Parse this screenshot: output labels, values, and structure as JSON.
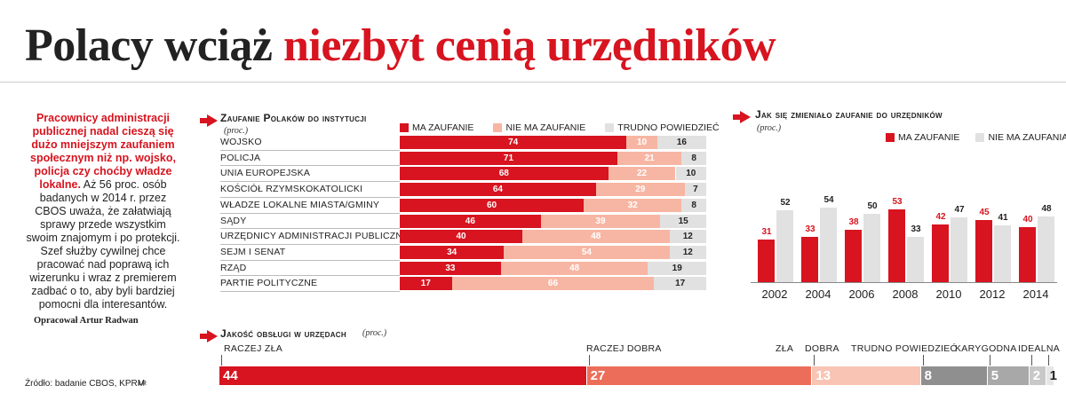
{
  "header": {
    "title_black": "Polacy wciąż",
    "title_red": "niezbyt cenią urzędników"
  },
  "lead": {
    "bold_text": "Pracownicy administracji publicznej nadal cieszą się dużo mniejszym zaufaniem społecznym niż np. wojsko, policja czy choćby władze lokalne.",
    "body_text": " Aż 56 proc. osób badanych w 2014 r. przez CBOS uważa, że załatwiają sprawy przede wszystkim swoim znajomym i po protekcji. Szef służby cywilnej chce pracować nad poprawą ich wizerunku i wraz z premierem zadbać o to, aby byli bardziej pomocni dla interesantów.",
    "author": "Opracował Artur Radwan"
  },
  "footer": {
    "source": "Źródło: badanie CBOS, KPRM",
    "tag": "LR"
  },
  "colors": {
    "red": "#d7141f",
    "pink": "#f7b6a3",
    "grey": "#e1e1e1",
    "dark_grey": "#9a9a9a"
  },
  "chart_data": [
    {
      "type": "bar",
      "orientation": "horizontal-stacked",
      "title": "Zaufanie Polaków do instytucji",
      "subtitle": "(proc.)",
      "categories": [
        "WOJSKO",
        "POLICJA",
        "UNIA EUROPEJSKA",
        "KOŚCIÓŁ RZYMSKOKATOLICKI",
        "WŁADZE LOKALNE MIASTA/GMINY",
        "SĄDY",
        "URZĘDNICY ADMINISTRACJI PUBLICZNEJ",
        "SEJM I SENAT",
        "RZĄD",
        "PARTIE POLITYCZNE"
      ],
      "series": [
        {
          "name": "MA ZAUFANIE",
          "values": [
            74,
            71,
            68,
            64,
            60,
            46,
            40,
            34,
            33,
            17
          ]
        },
        {
          "name": "NIE MA ZAUFANIE",
          "values": [
            10,
            21,
            22,
            29,
            32,
            39,
            48,
            54,
            48,
            66
          ]
        },
        {
          "name": "TRUDNO POWIEDZIEĆ",
          "values": [
            16,
            8,
            10,
            7,
            8,
            15,
            12,
            12,
            19,
            17
          ]
        }
      ],
      "legend_position": "top"
    },
    {
      "type": "bar",
      "title": "Jak się zmieniało zaufanie do urzędników",
      "subtitle": "(proc.)",
      "categories": [
        "2002",
        "2004",
        "2006",
        "2008",
        "2010",
        "2012",
        "2014"
      ],
      "series": [
        {
          "name": "MA ZAUFANIE",
          "values": [
            31,
            33,
            38,
            53,
            42,
            45,
            40
          ]
        },
        {
          "name": "NIE MA ZAUFANIA",
          "values": [
            52,
            54,
            50,
            33,
            47,
            41,
            48
          ]
        }
      ],
      "legend_position": "top"
    },
    {
      "type": "bar",
      "orientation": "single-stacked",
      "title": "Jakość obsługi w urzędach",
      "subtitle": "(proc.)",
      "series": [
        {
          "name": "RACZEJ ZŁA",
          "value": 44
        },
        {
          "name": "RACZEJ DOBRA",
          "value": 27
        },
        {
          "name": "ZŁA",
          "value": 13
        },
        {
          "name": "DOBRA",
          "value": 8
        },
        {
          "name": "TRUDNO POWIEDZIEĆ",
          "value": 5
        },
        {
          "name": "KARYGODNA",
          "value": 2
        },
        {
          "name": "IDEALNA",
          "value": 1
        }
      ]
    }
  ]
}
